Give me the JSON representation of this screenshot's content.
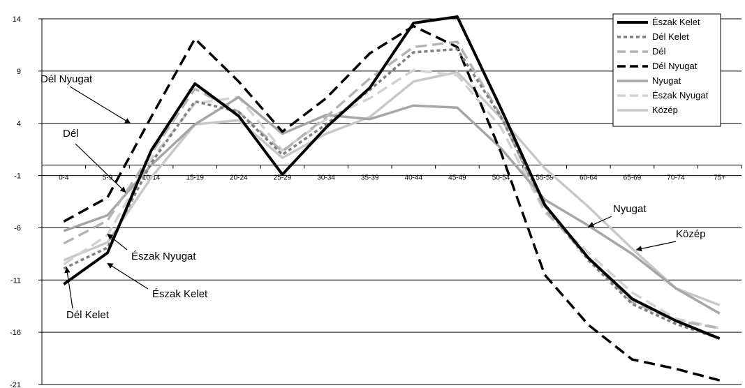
{
  "chart_data": {
    "type": "line",
    "categories": [
      "0-4",
      "5-9",
      "10-14",
      "15-19",
      "20-24",
      "25-29",
      "30-34",
      "35-39",
      "40-44",
      "45-49",
      "50-54",
      "55-59",
      "60-64",
      "65-69",
      "70-74",
      "75+"
    ],
    "yticks": [
      14,
      9,
      4,
      -1,
      -6,
      -11,
      -16,
      -21
    ],
    "ylim": [
      -21,
      14
    ],
    "grid": true,
    "legend_position": "top-right",
    "series": [
      {
        "name": "Észak Kelet",
        "color": "#000000",
        "dash": "solid",
        "width": "thick",
        "values": [
          -11.4,
          -8.4,
          1.4,
          7.8,
          4.7,
          -0.9,
          3.6,
          7.4,
          13.6,
          14.2,
          5.4,
          -3.8,
          -8.9,
          -12.8,
          -14.9,
          -16.6
        ]
      },
      {
        "name": "Dél Kelet",
        "color": "#7f7f7f",
        "dash": "dotted",
        "width": "medium",
        "values": [
          -9.9,
          -7.9,
          0.2,
          6.1,
          5.1,
          1.0,
          3.9,
          7.2,
          10.8,
          11.1,
          4.6,
          -3.9,
          -9.1,
          -13.3,
          -15.2,
          -16.6
        ]
      },
      {
        "name": "Dél",
        "color": "#b4b4b4",
        "dash": "long-dash",
        "width": "medium",
        "values": [
          -7.5,
          -5.3,
          1.1,
          7.3,
          5.1,
          1.3,
          4.6,
          8.3,
          11.3,
          11.8,
          4.7,
          -4.3,
          -8.9,
          -13.1,
          -14.9,
          -15.6
        ]
      },
      {
        "name": "Dél Nyugat",
        "color": "#000000",
        "dash": "long-dash",
        "width": "medium",
        "values": [
          -5.4,
          -3.1,
          4.6,
          12.1,
          8.0,
          3.2,
          6.4,
          10.7,
          13.3,
          11.3,
          1.2,
          -10.5,
          -15.3,
          -18.6,
          -19.5,
          -20.6
        ]
      },
      {
        "name": "Nyugat",
        "color": "#a6a6a6",
        "dash": "solid",
        "width": "medium",
        "values": [
          -6.3,
          -4.8,
          0.0,
          3.9,
          6.5,
          3.0,
          4.8,
          4.4,
          5.7,
          5.5,
          1.6,
          -3.3,
          -5.8,
          -8.5,
          -11.8,
          -14.2
        ]
      },
      {
        "name": "Észak Nyugat",
        "color": "#d2d2d2",
        "dash": "long-dash",
        "width": "medium",
        "values": [
          -9.5,
          -6.7,
          0.6,
          5.9,
          6.5,
          1.4,
          4.4,
          6.4,
          9.1,
          8.6,
          3.6,
          -4.5,
          -8.4,
          -12.2,
          -14.7,
          -15.6
        ]
      },
      {
        "name": "Közép",
        "color": "#c8c8c8",
        "dash": "solid",
        "width": "medium",
        "values": [
          -9.1,
          -7.4,
          -1.2,
          3.9,
          4.3,
          0.7,
          3.0,
          4.6,
          8.0,
          8.9,
          4.5,
          -0.3,
          -4.0,
          -8.0,
          -11.8,
          -13.4
        ]
      }
    ],
    "annotations": [
      {
        "text": "Dél Nyugat",
        "series": "Dél Nyugat",
        "category": "10-14"
      },
      {
        "text": "Dél",
        "series": "Dél",
        "category": "5-9"
      },
      {
        "text": "Észak Nyugat",
        "series": "Dél",
        "category": "5-9"
      },
      {
        "text": "Észak Kelet",
        "series": "Észak Kelet",
        "category": "5-9"
      },
      {
        "text": "Dél Kelet",
        "series": "Dél Kelet",
        "category": "0-4"
      },
      {
        "text": "Nyugat",
        "series": "Nyugat",
        "category": "60-64"
      },
      {
        "text": "Közép",
        "series": "Közép",
        "category": "65-69"
      }
    ]
  }
}
